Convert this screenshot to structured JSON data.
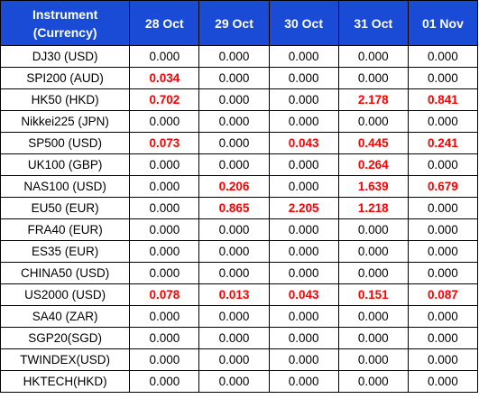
{
  "table": {
    "header": {
      "instrument_line1": "Instrument",
      "instrument_line2": "(Currency)",
      "dates": [
        "28 Oct",
        "29 Oct",
        "30 Oct",
        "31 Oct",
        "01 Nov"
      ]
    },
    "rows": [
      {
        "instrument": "DJ30 (USD)",
        "values": [
          "0.000",
          "0.000",
          "0.000",
          "0.000",
          "0.000"
        ]
      },
      {
        "instrument": "SPI200 (AUD)",
        "values": [
          "0.034",
          "0.000",
          "0.000",
          "0.000",
          "0.000"
        ]
      },
      {
        "instrument": "HK50 (HKD)",
        "values": [
          "0.702",
          "0.000",
          "0.000",
          "2.178",
          "0.841"
        ]
      },
      {
        "instrument": "Nikkei225 (JPN)",
        "values": [
          "0.000",
          "0.000",
          "0.000",
          "0.000",
          "0.000"
        ]
      },
      {
        "instrument": "SP500 (USD)",
        "values": [
          "0.073",
          "0.000",
          "0.043",
          "0.445",
          "0.241"
        ]
      },
      {
        "instrument": "UK100 (GBP)",
        "values": [
          "0.000",
          "0.000",
          "0.000",
          "0.264",
          "0.000"
        ]
      },
      {
        "instrument": "NAS100 (USD)",
        "values": [
          "0.000",
          "0.206",
          "0.000",
          "1.639",
          "0.679"
        ]
      },
      {
        "instrument": "EU50 (EUR)",
        "values": [
          "0.000",
          "0.865",
          "2.205",
          "1.218",
          "0.000"
        ]
      },
      {
        "instrument": "FRA40 (EUR)",
        "values": [
          "0.000",
          "0.000",
          "0.000",
          "0.000",
          "0.000"
        ]
      },
      {
        "instrument": "ES35 (EUR)",
        "values": [
          "0.000",
          "0.000",
          "0.000",
          "0.000",
          "0.000"
        ]
      },
      {
        "instrument": "CHINA50 (USD)",
        "values": [
          "0.000",
          "0.000",
          "0.000",
          "0.000",
          "0.000"
        ]
      },
      {
        "instrument": "US2000 (USD)",
        "values": [
          "0.078",
          "0.013",
          "0.043",
          "0.151",
          "0.087"
        ]
      },
      {
        "instrument": "SA40 (ZAR)",
        "values": [
          "0.000",
          "0.000",
          "0.000",
          "0.000",
          "0.000"
        ]
      },
      {
        "instrument": "SGP20(SGD)",
        "values": [
          "0.000",
          "0.000",
          "0.000",
          "0.000",
          "0.000"
        ]
      },
      {
        "instrument": "TWINDEX(USD)",
        "values": [
          "0.000",
          "0.000",
          "0.000",
          "0.000",
          "0.000"
        ]
      },
      {
        "instrument": "HKTECH(HKD)",
        "values": [
          "0.000",
          "0.000",
          "0.000",
          "0.000",
          "0.000"
        ]
      }
    ],
    "colors": {
      "header_bg": "#1a4bd6",
      "header_text": "#ffffff",
      "nonzero_text": "#ff0000",
      "zero_text": "#000000"
    }
  }
}
